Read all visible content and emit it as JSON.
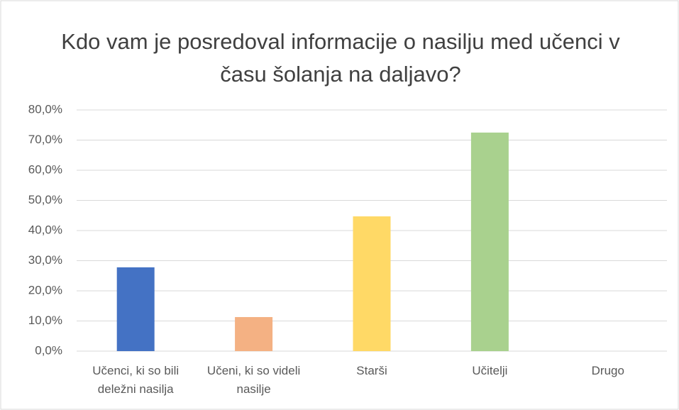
{
  "chart_data": {
    "type": "bar",
    "title": "Kdo vam je posredoval informacije o nasilju med učenci v času šolanja na daljavo?",
    "categories": [
      "Učenci, ki so bili deležni nasilja",
      "Učeni, ki so videli nasilje",
      "Starši",
      "Učitelji",
      "Drugo"
    ],
    "values": [
      27.8,
      11.3,
      44.7,
      72.5,
      0
    ],
    "colors": [
      "#4472c4",
      "#f4b183",
      "#ffd966",
      "#a9d18e",
      "#8faadc"
    ],
    "ylim": [
      0,
      80
    ],
    "yticks": [
      {
        "value": 0,
        "label": "0,0%"
      },
      {
        "value": 10,
        "label": "10,0%"
      },
      {
        "value": 20,
        "label": "20,0%"
      },
      {
        "value": 30,
        "label": "30,0%"
      },
      {
        "value": 40,
        "label": "40,0%"
      },
      {
        "value": 50,
        "label": "50,0%"
      },
      {
        "value": 60,
        "label": "60,0%"
      },
      {
        "value": 70,
        "label": "70,0%"
      },
      {
        "value": 80,
        "label": "80,0%"
      }
    ],
    "grid": true
  }
}
